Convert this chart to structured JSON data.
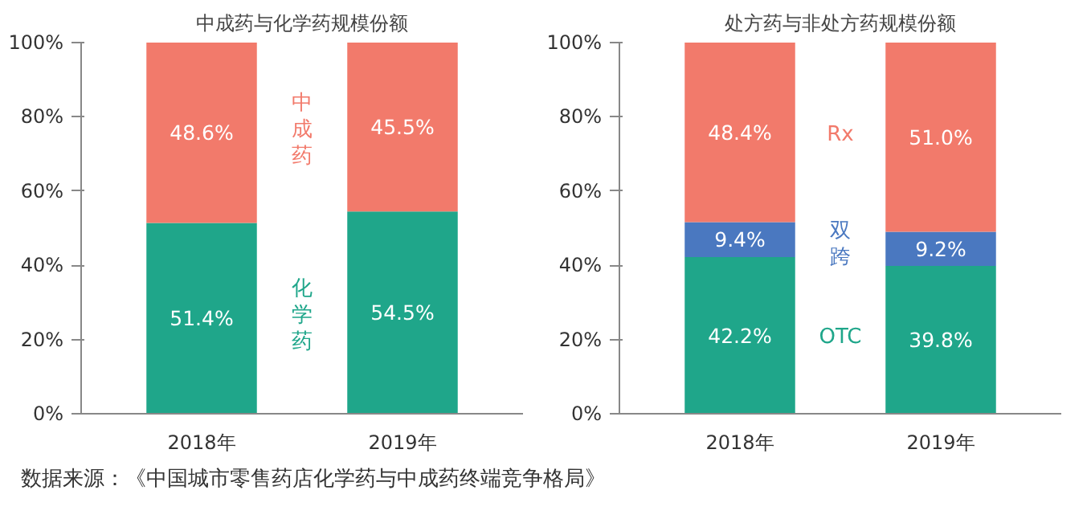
{
  "chart_data": [
    {
      "type": "bar",
      "stacked": true,
      "title": "中成药与化学药规模份额",
      "categories": [
        "2018年",
        "2019年"
      ],
      "ylim": [
        0,
        100
      ],
      "yticks": [
        {
          "value": 0,
          "label": "0%"
        },
        {
          "value": 20,
          "label": "20%"
        },
        {
          "value": 40,
          "label": "40%"
        },
        {
          "value": 60,
          "label": "60%"
        },
        {
          "value": 80,
          "label": "80%"
        },
        {
          "value": 100,
          "label": "100%"
        }
      ],
      "grid": false,
      "series": [
        {
          "name": "化学药",
          "color": "#1fa68a",
          "values": [
            51.4,
            54.5
          ],
          "value_labels": [
            "51.4%",
            "54.5%"
          ]
        },
        {
          "name": "中成药",
          "color": "#f27a6b",
          "values": [
            48.6,
            45.5
          ],
          "value_labels": [
            "48.6%",
            "45.5%"
          ]
        }
      ],
      "annotations": [
        "数据来源：《中国城市零售药店化学药与中成药终端竞争格局》"
      ]
    },
    {
      "type": "bar",
      "stacked": true,
      "title": "处方药与非处方药规模份额",
      "categories": [
        "2018年",
        "2019年"
      ],
      "ylim": [
        0,
        100
      ],
      "yticks": [
        {
          "value": 0,
          "label": "0%"
        },
        {
          "value": 20,
          "label": "20%"
        },
        {
          "value": 40,
          "label": "40%"
        },
        {
          "value": 60,
          "label": "60%"
        },
        {
          "value": 80,
          "label": "80%"
        },
        {
          "value": 100,
          "label": "100%"
        }
      ],
      "grid": false,
      "series": [
        {
          "name": "OTC",
          "color": "#1fa68a",
          "values": [
            42.2,
            39.8
          ],
          "value_labels": [
            "42.2%",
            "39.8%"
          ]
        },
        {
          "name": "双跨",
          "color": "#4a78c0",
          "values": [
            9.4,
            9.2
          ],
          "value_labels": [
            "9.4%",
            "9.2%"
          ]
        },
        {
          "name": "Rx",
          "color": "#f27a6b",
          "values": [
            48.4,
            51.0
          ],
          "value_labels": [
            "48.4%",
            "51.0%"
          ]
        }
      ]
    }
  ]
}
